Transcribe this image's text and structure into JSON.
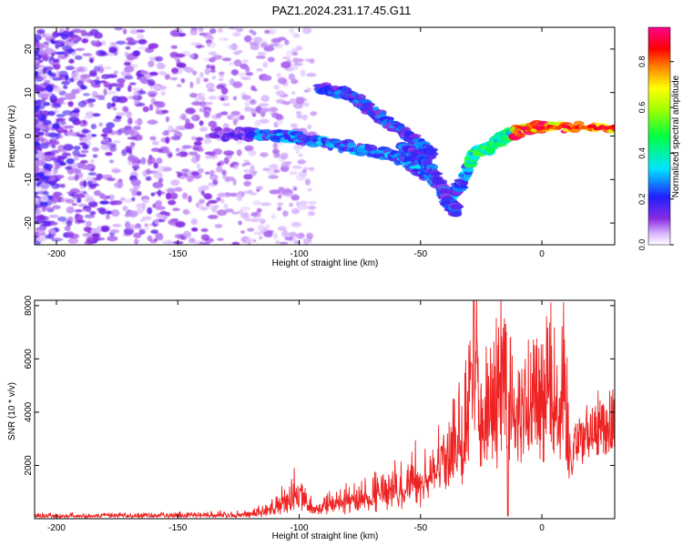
{
  "figure_title": "PAZ1.2024.231.17.45.G11",
  "chart_data": [
    {
      "type": "heatmap",
      "name": "spectrogram",
      "xlabel": "Height of straight line (km)",
      "ylabel": "Frequency (Hz)",
      "xlim": [
        -209,
        30
      ],
      "ylim": [
        -25,
        25
      ],
      "xticks": [
        -200,
        -150,
        -100,
        -50,
        0
      ],
      "yticks": [
        -20,
        -10,
        0,
        10,
        20
      ],
      "colorbar": {
        "label": "Normalized spectral amplitude",
        "range": [
          0,
          0.95
        ],
        "ticks": [
          0.0,
          0.2,
          0.4,
          0.6,
          0.8
        ],
        "colormap": "rainbow-white-purple-blue-cyan-green-yellow-red-magenta"
      },
      "ridges": [
        {
          "desc": "main signal",
          "points": [
            [
              -135,
              0.5
            ],
            [
              -120,
              0.5
            ],
            [
              -105,
              0
            ],
            [
              -95,
              -1
            ],
            [
              -80,
              -2.5
            ],
            [
              -65,
              -4
            ],
            [
              -55,
              -6
            ],
            [
              -45,
              -10
            ],
            [
              -38,
              -14
            ],
            [
              -32,
              -10
            ],
            [
              -28,
              -4
            ],
            [
              -22,
              -3
            ],
            [
              -18,
              -1
            ],
            [
              -10,
              1
            ],
            [
              0,
              2
            ],
            [
              30,
              2
            ]
          ]
        },
        {
          "desc": "upper branch",
          "points": [
            [
              -92,
              11
            ],
            [
              -82,
              10
            ],
            [
              -75,
              8
            ],
            [
              -68,
              5
            ],
            [
              -60,
              2
            ],
            [
              -52,
              -1
            ],
            [
              -45,
              -4
            ]
          ]
        },
        {
          "desc": "lower branch",
          "points": [
            [
              -58,
              -3
            ],
            [
              -50,
              -5
            ],
            [
              -44,
              -9
            ],
            [
              -38,
              -16
            ],
            [
              -35,
              -17
            ]
          ]
        }
      ],
      "noise_region_x": [
        -209,
        -110
      ]
    },
    {
      "type": "line",
      "name": "snr",
      "xlabel": "Height of straight line (km)",
      "ylabel": "SNR (10 * v/v)",
      "xlim": [
        -209,
        30
      ],
      "ylim": [
        0,
        8200
      ],
      "xticks": [
        -200,
        -150,
        -100,
        -50,
        0
      ],
      "yticks": [
        2000,
        4000,
        6000,
        8000
      ],
      "series": [
        {
          "color": "#ee2222",
          "envelope": {
            "x": [
              -209,
              -150,
              -120,
              -110,
              -104,
              -100,
              -96,
              -80,
              -70,
              -60,
              -50,
              -45,
              -40,
              -35,
              -32,
              -29,
              -27,
              -25,
              -22,
              -20,
              -18,
              -16,
              -14,
              -12,
              -10,
              -8,
              -5,
              0,
              5,
              10,
              12,
              15,
              20,
              25,
              30
            ],
            "y": [
              120,
              150,
              200,
              500,
              900,
              1200,
              500,
              800,
              1000,
              1300,
              1800,
              2000,
              2400,
              3000,
              3600,
              4600,
              7000,
              3500,
              4200,
              5000,
              5200,
              6000,
              4000,
              4200,
              4800,
              4600,
              5200,
              5000,
              5000,
              5400,
              2600,
              3300,
              3800,
              3900,
              4100
            ]
          },
          "spikes": [
            [
              -28,
              8200
            ],
            [
              -29,
              5800
            ],
            [
              -15,
              7300
            ],
            [
              -13,
              6800
            ],
            [
              -14,
              100
            ]
          ]
        }
      ]
    }
  ]
}
